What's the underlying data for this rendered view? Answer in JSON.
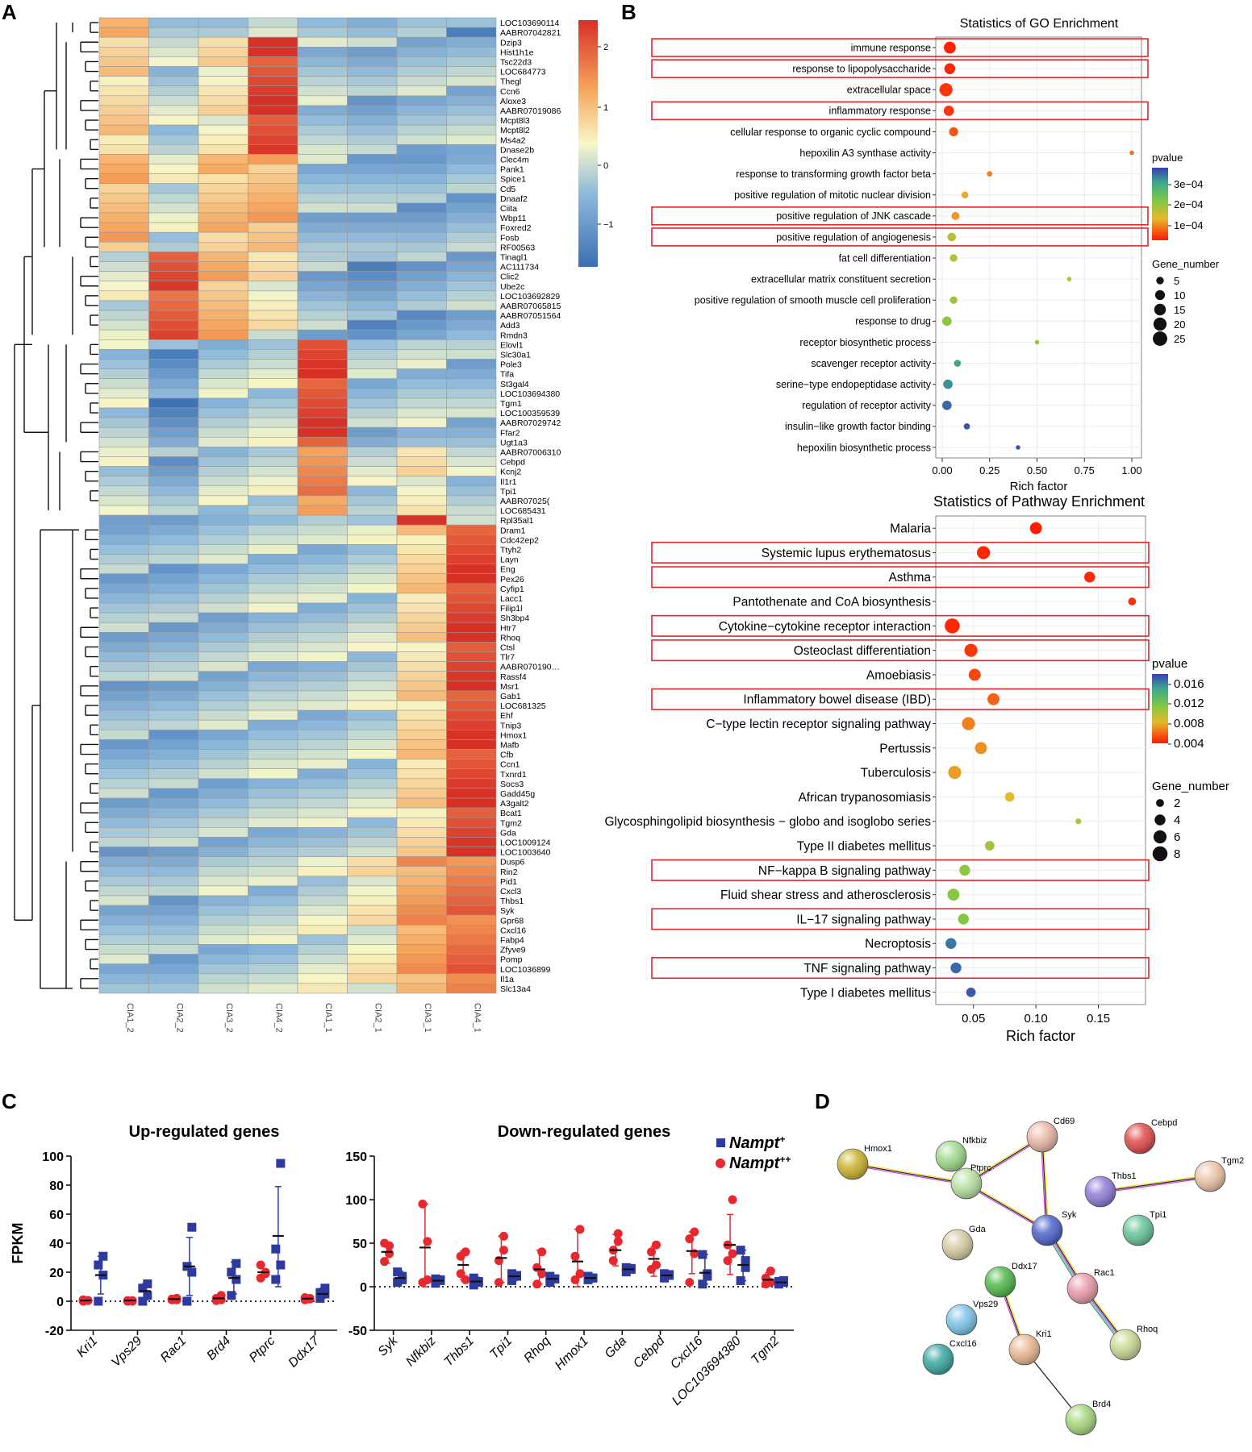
{
  "panels": {
    "a": "A",
    "b": "B",
    "c": "C",
    "d": "D"
  },
  "colors": {
    "heat_low": "#4575b4",
    "heat_mid": "#f7f7c8",
    "heat_high": "#d73027",
    "highlight_box": "#e0262b",
    "nampt_plus": "#2e3a9e",
    "nampt_plusplus": "#e8282f",
    "grid": "#e6e6e6",
    "panel_bg": "#ffffff"
  },
  "heatmap": {
    "columns": [
      "CIA1_2",
      "CIA2_2",
      "CIA3_2",
      "CIA4_2",
      "CIA1_1",
      "CIA2_1",
      "CIA3_1",
      "CIA4_1"
    ],
    "genes": [
      "LOC103690114",
      "AABR07042821",
      "Dzip3",
      "Hist1h1e",
      "Tsc22d3",
      "LOC684773",
      "Thegl",
      "Ccn6",
      "Aloxe3",
      "AABR07019086",
      "Mcpt8l3",
      "Mcpt8l2",
      "Ms4a2",
      "Dnase2b",
      "Clec4m",
      "Pank1",
      "Spice1",
      "Cd5",
      "Dnaaf2",
      "Ciita",
      "Wbp11",
      "Foxred2",
      "Fosb",
      "RF00563",
      "Tinagl1",
      "AC111734",
      "Clic2",
      "Ube2c",
      "LOC103692829",
      "AABR07065815",
      "AABR07051564",
      "Add3",
      "Rmdn3",
      "Elovl1",
      "Slc30a1",
      "Pole3",
      "Tifa",
      "St3gal4",
      "LOC103694380",
      "Tgm1",
      "LOC100359539",
      "AABR07029742",
      "Ffar2",
      "Ugt1a3",
      "AABR07006310",
      "Cebpd",
      "Kcnj2",
      "Il1r1",
      "Tpi1",
      "AABR07025(",
      "LOC685431",
      "Rpl35al1",
      "Dram1",
      "Cdc42ep2",
      "Ttyh2",
      "Layn",
      "Eng",
      "Pex26",
      "Cyfip1",
      "Lacc1",
      "Filip1l",
      "Sh3bp4",
      "Htr7",
      "Rhoq",
      "Ctsl",
      "Tlr7",
      "AABR070190…",
      "Rassf4",
      "Msr1",
      "Gab1",
      "LOC681325",
      "Ehf",
      "Tnip3",
      "Hmox1",
      "Mafb",
      "Cfb",
      "Ccn1",
      "Txnrd1",
      "Socs3",
      "Gadd45g",
      "A3galt2",
      "Bcat1",
      "Tgm2",
      "Gda",
      "LOC1009124",
      "LOC1003640",
      "Dusp6",
      "Rin2",
      "Pid1",
      "Cxcl3",
      "Thbs1",
      "Syk",
      "Gpr68",
      "Cxcl16",
      "Fabp4",
      "Zfyve9",
      "Pomp",
      "LOC1036899",
      "Il1a",
      "Slc13a4"
    ],
    "legend_ticks": [
      "2",
      "1",
      "0",
      "−1"
    ]
  },
  "chart_data": [
    {
      "type": "scatter",
      "title": "Statistics of GO Enrichment",
      "xlabel": "Rich factor",
      "ylabel": "",
      "xlim": [
        0,
        1
      ],
      "xticks": [
        "0.00",
        "0.25",
        "0.50",
        "0.75",
        "1.00"
      ],
      "terms": [
        "immune response",
        "response to lipopolysaccharide",
        "extracellular space",
        "inflammatory response",
        "cellular response to organic cyclic compound",
        "hepoxilin A3 synthase activity",
        "response to transforming growth factor beta",
        "positive regulation of mitotic nuclear division",
        "positive regulation of JNK cascade",
        "positive regulation of angiogenesis",
        "fat cell differentiation",
        "extracellular matrix constituent secretion",
        "positive regulation of smooth muscle cell proliferation",
        "response to drug",
        "receptor biosynthetic process",
        "scavenger receptor activity",
        "serine−type endopeptidase activity",
        "regulation of receptor activity",
        "insulin−like growth factor binding",
        "hepoxilin biosynthetic process"
      ],
      "rich_factor": [
        0.04,
        0.04,
        0.02,
        0.035,
        0.06,
        1.0,
        0.25,
        0.12,
        0.07,
        0.05,
        0.06,
        0.67,
        0.06,
        0.025,
        0.5,
        0.08,
        0.03,
        0.025,
        0.13,
        0.4
      ],
      "pvalue": [
        5e-06,
        1e-05,
        2e-05,
        2e-05,
        4e-05,
        6e-05,
        7e-05,
        0.0001,
        9e-05,
        0.00015,
        0.00016,
        0.00017,
        0.00018,
        0.00019,
        0.00019,
        0.00029,
        0.00031,
        0.00034,
        0.00035,
        0.00036
      ],
      "gene_number": [
        16,
        13,
        20,
        11,
        8,
        1,
        2,
        4,
        6,
        7,
        5,
        1,
        5,
        9,
        1,
        4,
        9,
        9,
        3,
        1
      ],
      "highlighted": [
        true,
        true,
        false,
        true,
        false,
        false,
        false,
        false,
        true,
        true,
        false,
        false,
        false,
        false,
        false,
        false,
        false,
        false,
        false,
        false
      ],
      "pvalue_legend": {
        "title": "pvalue",
        "ticks": [
          "3e−04",
          "2e−04",
          "1e−04"
        ],
        "max": 0.00037
      },
      "size_legend": {
        "title": "Gene_number",
        "values": [
          5,
          10,
          15,
          20,
          25
        ]
      }
    },
    {
      "type": "scatter",
      "title": "Statistics of Pathway Enrichment",
      "xlabel": "Rich factor",
      "ylabel": "",
      "xlim": [
        0.025,
        0.18
      ],
      "xticks": [
        "0.05",
        "0.10",
        "0.15"
      ],
      "terms": [
        "Malaria",
        "Systemic lupus erythematosus",
        "Asthma",
        "Pantothenate and CoA biosynthesis",
        "Cytokine−cytokine receptor interaction",
        "Osteoclast differentiation",
        "Amoebiasis",
        "Inflammatory bowel disease (IBD)",
        "C−type lectin receptor signaling pathway",
        "Pertussis",
        "Tuberculosis",
        "African trypanosomiasis",
        "Glycosphingolipid biosynthesis − globo and isoglobo series",
        "Type II diabetes mellitus",
        "NF−kappa B signaling pathway",
        "Fluid shear stress and atherosclerosis",
        "IL−17 signaling pathway",
        "Necroptosis",
        "TNF signaling pathway",
        "Type I diabetes mellitus"
      ],
      "rich_factor": [
        0.1,
        0.058,
        0.143,
        0.177,
        0.033,
        0.048,
        0.051,
        0.066,
        0.046,
        0.056,
        0.035,
        0.079,
        0.134,
        0.063,
        0.043,
        0.034,
        0.042,
        0.032,
        0.036,
        0.048
      ],
      "pvalue": [
        0.0001,
        0.0004,
        0.0005,
        0.0008,
        0.0005,
        0.001,
        0.0015,
        0.0025,
        0.0035,
        0.004,
        0.0045,
        0.0055,
        0.0075,
        0.0085,
        0.0092,
        0.0095,
        0.0098,
        0.016,
        0.0165,
        0.017
      ],
      "gene_number": [
        5,
        6,
        4,
        2,
        8,
        6,
        5,
        5,
        6,
        5,
        6,
        3,
        1,
        3,
        4,
        5,
        4,
        4,
        4,
        3
      ],
      "highlighted": [
        false,
        true,
        true,
        false,
        true,
        true,
        false,
        true,
        false,
        false,
        false,
        false,
        false,
        false,
        true,
        false,
        true,
        false,
        true,
        false
      ],
      "pvalue_legend": {
        "title": "pvalue",
        "ticks": [
          "0.016",
          "0.012",
          "0.008",
          "0.004"
        ],
        "max": 0.018
      },
      "size_legend": {
        "title": "Gene_number",
        "values": [
          2,
          4,
          6,
          8
        ]
      }
    },
    {
      "type": "scatter",
      "title": "Up-regulated genes",
      "xlabel": "",
      "ylabel": "FPKM",
      "ylim": [
        -20,
        100
      ],
      "yticks": [
        "100",
        "80",
        "60",
        "40",
        "20",
        "0",
        "-20"
      ],
      "categories": [
        "Kri1",
        "Vps29",
        "Rac1",
        "Brd4",
        "Ptprc",
        "Ddx17"
      ],
      "series": [
        {
          "name": "Nampt++",
          "mean": [
            0.5,
            0.5,
            1.5,
            2,
            20,
            1.8
          ],
          "sd_low": [
            0.5,
            0.5,
            1.5,
            2,
            20,
            1.8
          ],
          "sd_high": [
            0.5,
            0.5,
            1.5,
            2,
            20,
            1.8
          ],
          "points": [
            [
              0,
              0.5,
              1,
              0.5
            ],
            [
              0,
              0.5,
              0.5,
              0
            ],
            [
              1,
              2,
              1.5,
              1
            ],
            [
              0.5,
              4,
              2,
              1
            ],
            [
              16,
              20,
              25,
              19
            ],
            [
              1,
              2,
              2.5,
              1.5
            ]
          ]
        },
        {
          "name": "Nampt+",
          "mean": [
            18,
            7,
            24,
            16,
            45,
            5
          ],
          "sd_low": [
            5,
            1,
            4,
            5,
            10,
            2
          ],
          "sd_high": [
            31,
            12,
            44,
            27,
            79,
            9
          ],
          "points": [
            [
              0,
              18,
              25,
              31
            ],
            [
              0,
              4,
              9,
              12
            ],
            [
              0,
              20,
              24,
              51
            ],
            [
              4,
              15,
              20,
              26
            ],
            [
              15,
              25,
              36,
              95
            ],
            [
              2,
              5,
              6,
              9
            ]
          ]
        }
      ]
    },
    {
      "type": "scatter",
      "title": "Down-regulated genes",
      "xlabel": "",
      "ylabel": "",
      "ylim": [
        -50,
        150
      ],
      "yticks": [
        "150",
        "100",
        "50",
        "0",
        "-50"
      ],
      "categories": [
        "Syk",
        "Nfkbiz",
        "Thbs1",
        "Tpi1",
        "Rhoq",
        "Hmox1",
        "Gda",
        "Cebpd",
        "Cxcl16",
        "LOC103694380",
        "Tgm2"
      ],
      "series": [
        {
          "name": "Nampt++",
          "mean": [
            40,
            45,
            25,
            33,
            20,
            29,
            42,
            32,
            41,
            48,
            8
          ],
          "sd_low": [
            27,
            0,
            8,
            5,
            3,
            0,
            24,
            12,
            15,
            14,
            2
          ],
          "sd_high": [
            50,
            95,
            41,
            58,
            42,
            66,
            60,
            46,
            63,
            83,
            16
          ],
          "points": [
            [
              29,
              47,
              50,
              38
            ],
            [
              5,
              52,
              95,
              8
            ],
            [
              15,
              40,
              35,
              8
            ],
            [
              5,
              58,
              30,
              42
            ],
            [
              3,
              40,
              22,
              15
            ],
            [
              8,
              66,
              35,
              15
            ],
            [
              30,
              61,
              42,
              52
            ],
            [
              20,
              48,
              40,
              25
            ],
            [
              5,
              63,
              55,
              38
            ],
            [
              30,
              100,
              48,
              38
            ],
            [
              3,
              18,
              10,
              5
            ]
          ]
        },
        {
          "name": "Nampt+",
          "mean": [
            10,
            7,
            6,
            12,
            9,
            10,
            20,
            13,
            16,
            25,
            5
          ],
          "sd_low": [
            4,
            4,
            1,
            7,
            5,
            8,
            17,
            10,
            3,
            7,
            3
          ],
          "sd_high": [
            18,
            10,
            11,
            16,
            13,
            12,
            23,
            16,
            37,
            42,
            7
          ],
          "points": [
            [
              5,
              12,
              17,
              8
            ],
            [
              4,
              7,
              9,
              8
            ],
            [
              2,
              5,
              10,
              6
            ],
            [
              7,
              13,
              15,
              12
            ],
            [
              5,
              9,
              12,
              9
            ],
            [
              8,
              10,
              12,
              10
            ],
            [
              17,
              20,
              22,
              21
            ],
            [
              10,
              13,
              15,
              14
            ],
            [
              3,
              12,
              37,
              15
            ],
            [
              7,
              22,
              42,
              30
            ],
            [
              3,
              5,
              6,
              7
            ]
          ]
        }
      ]
    }
  ],
  "panel_c": {
    "legend": [
      {
        "base": "Nampt",
        "sup": "+",
        "color": "#2e3a9e"
      },
      {
        "base": "Nampt",
        "sup": "++",
        "color": "#e8282f"
      }
    ]
  },
  "network": {
    "nodes": [
      {
        "id": "Hmox1",
        "color": "#c9b22e"
      },
      {
        "id": "Nfkbiz",
        "color": "#9fd98a"
      },
      {
        "id": "Ptprc",
        "color": "#b8e0a2"
      },
      {
        "id": "Cd69",
        "color": "#e8b7a6"
      },
      {
        "id": "Cebpd",
        "color": "#e04a4a"
      },
      {
        "id": "Thbs1",
        "color": "#8f7ad6"
      },
      {
        "id": "Tgm2",
        "color": "#ecc3a8"
      },
      {
        "id": "Tpi1",
        "color": "#66c49a"
      },
      {
        "id": "Syk",
        "color": "#4c63c9"
      },
      {
        "id": "Gda",
        "color": "#d6caa0"
      },
      {
        "id": "Ddx17",
        "color": "#4fb84a"
      },
      {
        "id": "Rac1",
        "color": "#e89aa8"
      },
      {
        "id": "Vps29",
        "color": "#7cc3e8"
      },
      {
        "id": "Cxcl16",
        "color": "#3aa7a0"
      },
      {
        "id": "Kri1",
        "color": "#e8b892"
      },
      {
        "id": "Rhoq",
        "color": "#c8d894"
      },
      {
        "id": "Brd4",
        "color": "#a6d67c"
      }
    ],
    "edges": [
      [
        "Hmox1",
        "Ptprc"
      ],
      [
        "Ptprc",
        "Cd69"
      ],
      [
        "Ptprc",
        "Syk"
      ],
      [
        "Cd69",
        "Syk"
      ],
      [
        "Syk",
        "Rac1"
      ],
      [
        "Rac1",
        "Rhoq"
      ],
      [
        "Thbs1",
        "Tgm2"
      ],
      [
        "Ddx17",
        "Kri1"
      ],
      [
        "Kri1",
        "Brd4"
      ]
    ]
  }
}
